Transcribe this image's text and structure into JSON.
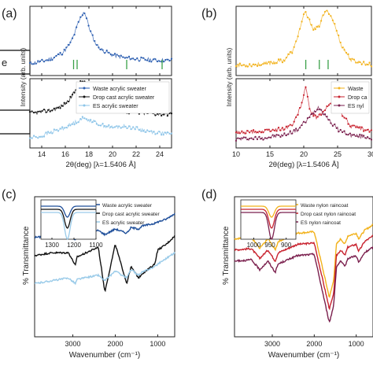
{
  "figure": {
    "panel_a_label": "(a)",
    "panel_b_label": "(b)",
    "panel_c_label": "(c)",
    "panel_d_label": "(d)",
    "cropped_box_text": "e"
  },
  "chart_data": [
    {
      "panel": "(a)",
      "type": "scatter",
      "xlabel": "2θ(deg) [λ=1.5406 Å]",
      "ylabel": "Intensity (arb. units)",
      "xlim": [
        13,
        25
      ],
      "x_ticks": [
        "14",
        "16",
        "18",
        "20",
        "22",
        "24"
      ],
      "legend_position": "lower-right",
      "series": [
        {
          "name": "Waste acrylic sweater",
          "color": "#2a5db0",
          "marker": "dot",
          "x": [
            13.0,
            14.0,
            15.0,
            15.8,
            16.4,
            16.8,
            17.1,
            17.4,
            17.6,
            17.8,
            18.1,
            18.5,
            19.0,
            20.0,
            21.0,
            22.0,
            23.0,
            24.0,
            25.0
          ],
          "y": [
            0.15,
            0.18,
            0.24,
            0.32,
            0.45,
            0.62,
            0.78,
            0.9,
            0.96,
            0.85,
            0.66,
            0.48,
            0.37,
            0.28,
            0.24,
            0.22,
            0.21,
            0.2,
            0.2
          ]
        },
        {
          "name": "Drop cast acrylic sweater",
          "color": "#111111",
          "marker": "dot",
          "x": [
            13.0,
            14.0,
            15.0,
            15.8,
            16.4,
            16.8,
            17.1,
            17.4,
            17.6,
            17.8,
            18.1,
            18.5,
            19.0,
            20.0,
            21.0,
            22.0,
            23.0,
            24.0,
            25.0
          ],
          "y": [
            0.5,
            0.52,
            0.56,
            0.62,
            0.72,
            0.84,
            0.94,
            1.0,
            0.98,
            0.9,
            0.8,
            0.7,
            0.63,
            0.56,
            0.53,
            0.51,
            0.5,
            0.49,
            0.49
          ]
        },
        {
          "name": "ES acrylic sweater",
          "color": "#8cc4e8",
          "marker": "dot",
          "x": [
            13.0,
            14.0,
            15.0,
            16.0,
            16.8,
            17.4,
            18.0,
            19.0,
            20.0,
            21.0,
            22.0,
            23.0,
            24.0,
            25.0
          ],
          "y": [
            0.12,
            0.15,
            0.22,
            0.28,
            0.36,
            0.42,
            0.4,
            0.32,
            0.28,
            0.3,
            0.27,
            0.22,
            0.2,
            0.17
          ]
        }
      ],
      "reference_ticks_deg": [
        16.7,
        17.0,
        21.2,
        24.2
      ],
      "reference_tick_color": "#3aa048"
    },
    {
      "panel": "(b)",
      "type": "scatter",
      "xlabel": "2θ(deg) [λ=1.5406 Å]",
      "ylabel": "Intensity (arb. units)",
      "xlim": [
        10,
        30
      ],
      "x_ticks": [
        "10",
        "15",
        "20",
        "25",
        "30"
      ],
      "legend_position": "lower-right",
      "series": [
        {
          "name": "Waste",
          "color": "#f2b21b",
          "marker": "dot",
          "x": [
            10,
            14,
            17,
            18.5,
            19.5,
            20.2,
            20.8,
            21.5,
            22.2,
            23.0,
            23.6,
            24.4,
            25.5,
            27,
            30
          ],
          "y": [
            0.12,
            0.14,
            0.2,
            0.36,
            0.72,
            0.95,
            0.82,
            0.68,
            0.72,
            0.92,
            0.97,
            0.8,
            0.45,
            0.2,
            0.13
          ]
        },
        {
          "name": "Drop ca",
          "color": "#c8222e",
          "marker": "dot",
          "x": [
            10,
            14,
            17,
            18.5,
            19.6,
            20.3,
            21.0,
            21.8,
            22.8,
            23.6,
            24.4,
            25.4,
            27,
            30
          ],
          "y": [
            0.2,
            0.22,
            0.26,
            0.34,
            0.62,
            0.9,
            0.52,
            0.44,
            0.5,
            0.62,
            0.66,
            0.52,
            0.3,
            0.22
          ]
        },
        {
          "name": "ES nyl",
          "color": "#7a1f4d",
          "marker": "dot",
          "x": [
            10,
            14,
            17,
            19,
            20.5,
            21.5,
            22.2,
            23.0,
            24.0,
            25.2,
            27,
            30
          ],
          "y": [
            0.1,
            0.12,
            0.16,
            0.24,
            0.4,
            0.52,
            0.6,
            0.5,
            0.36,
            0.24,
            0.16,
            0.12
          ]
        }
      ],
      "reference_ticks_deg": [
        20.3,
        23.6,
        22.3
      ],
      "reference_tick_color": "#3aa048"
    },
    {
      "panel": "(c)",
      "type": "line",
      "xlabel": "Wavenumber (cm⁻¹)",
      "ylabel": "% Transmittance",
      "xlim": [
        3900,
        600
      ],
      "x_ticks": [
        "3000",
        "2000",
        "1000"
      ],
      "legend_position": "top-right",
      "series": [
        {
          "name": "Waste acrylic sweater",
          "color": "#1f4f9a",
          "x": [
            3900,
            3500,
            3100,
            2950,
            2900,
            2400,
            2245,
            2000,
            1730,
            1630,
            1450,
            1370,
            1230,
            1070,
            1000,
            800,
            600
          ],
          "y": [
            71,
            72,
            73,
            69,
            71,
            76,
            73,
            77,
            74,
            78,
            77,
            79,
            80,
            81,
            82,
            84,
            88
          ]
        },
        {
          "name": "Drop cast acrylic sweater",
          "color": "#111111",
          "x": [
            3900,
            3500,
            3100,
            2940,
            2900,
            2400,
            2245,
            2000,
            1730,
            1630,
            1450,
            1370,
            1230,
            1070,
            1000,
            800,
            600
          ],
          "y": [
            58,
            60,
            60,
            51,
            57,
            64,
            32,
            66,
            38,
            50,
            42,
            45,
            48,
            52,
            62,
            66,
            72
          ]
        },
        {
          "name": "ES acrylic sweater",
          "color": "#9acbe9",
          "x": [
            3900,
            3500,
            3100,
            2940,
            2900,
            2400,
            2245,
            2000,
            1730,
            1630,
            1450,
            1370,
            1230,
            1070,
            1000,
            800,
            600
          ],
          "y": [
            38,
            40,
            42,
            38,
            41,
            44,
            40,
            47,
            42,
            48,
            44,
            46,
            48,
            50,
            52,
            56,
            60
          ]
        }
      ],
      "inset": {
        "xlim": [
          1350,
          1100
        ],
        "x_ticks": [
          "1300",
          "1200",
          "1100"
        ],
        "dip_at": 1230
      }
    },
    {
      "panel": "(d)",
      "type": "line",
      "xlabel": "Wavenumber (cm⁻¹)",
      "ylabel": "% Transmittance",
      "xlim": [
        3900,
        600
      ],
      "x_ticks": [
        "3000",
        "2000",
        "1000"
      ],
      "legend_position": "top-right",
      "series": [
        {
          "name": "Waste nylon raincoat",
          "color": "#f2b21b",
          "x": [
            3900,
            3500,
            3300,
            3100,
            2930,
            2860,
            2400,
            2000,
            1640,
            1540,
            1470,
            1370,
            1270,
            1200,
            1000,
            940,
            800,
            600
          ],
          "y": [
            70,
            71,
            63,
            70,
            62,
            68,
            74,
            75,
            28,
            40,
            66,
            70,
            66,
            72,
            74,
            70,
            76,
            80
          ]
        },
        {
          "name": "Drop cast nylon raincoat",
          "color": "#c8222e",
          "x": [
            3900,
            3500,
            3300,
            3100,
            2930,
            2860,
            2400,
            2000,
            1640,
            1540,
            1470,
            1370,
            1270,
            1200,
            1000,
            940,
            800,
            600
          ],
          "y": [
            62,
            63,
            56,
            62,
            54,
            60,
            66,
            67,
            20,
            30,
            58,
            62,
            58,
            64,
            66,
            61,
            68,
            72
          ]
        },
        {
          "name": "ES nylon raincoat",
          "color": "#7a1f4d",
          "x": [
            3900,
            3500,
            3300,
            3100,
            2930,
            2860,
            2400,
            2000,
            1640,
            1540,
            1470,
            1370,
            1270,
            1200,
            1000,
            940,
            800,
            600
          ],
          "y": [
            54,
            55,
            48,
            54,
            46,
            52,
            58,
            59,
            10,
            22,
            50,
            54,
            50,
            56,
            58,
            53,
            60,
            64
          ]
        }
      ],
      "inset": {
        "xlim": [
          1040,
          870
        ],
        "x_ticks": [
          "1000",
          "950",
          "900"
        ],
        "dip_at": 945
      }
    }
  ]
}
